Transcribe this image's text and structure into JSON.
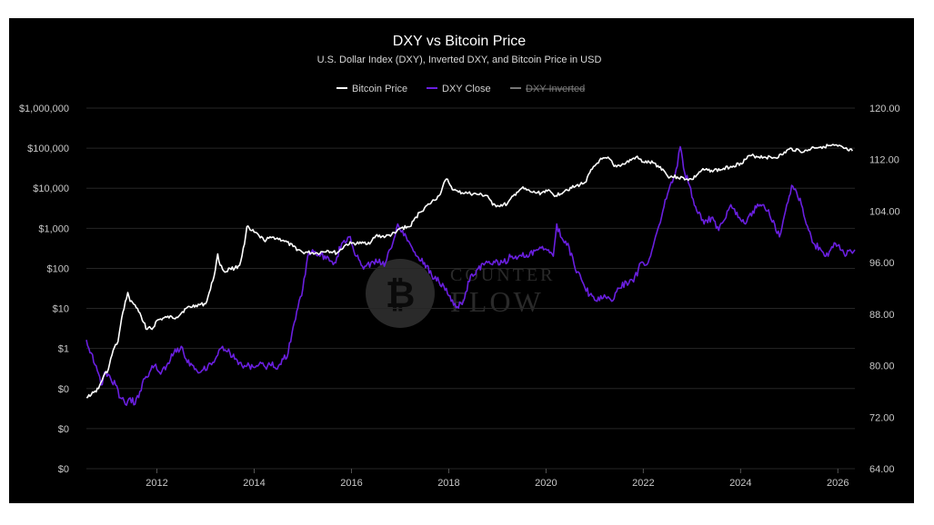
{
  "chart_data": {
    "type": "line",
    "title": "DXY vs Bitcoin Price",
    "subtitle": "U.S. Dollar Index (DXY), Inverted DXY, and Bitcoin Price in USD",
    "watermark": {
      "top": "COUNTER",
      "bottom": "FLOW"
    },
    "legend": [
      {
        "name": "Bitcoin Price",
        "color": "#ffffff",
        "hidden": false
      },
      {
        "name": "DXY Close",
        "color": "#6a1fe0",
        "hidden": false
      },
      {
        "name": "DXY Inverted",
        "color": "#8a8a8a",
        "hidden": true
      }
    ],
    "x_ticks": [
      "2012",
      "2014",
      "2016",
      "2018",
      "2020",
      "2022",
      "2024",
      "2026"
    ],
    "x_range": [
      2010.55,
      2026.35
    ],
    "y_left": {
      "scale": "log",
      "tick_labels": [
        "$1,000,000",
        "$100,000",
        "$10,000",
        "$1,000",
        "$100",
        "$10",
        "$1",
        "$0",
        "$0",
        "$0"
      ],
      "tick_values": [
        1000000,
        100000,
        10000,
        1000,
        100,
        10,
        1,
        0.1,
        0.01,
        0.001
      ]
    },
    "y_right": {
      "scale": "linear",
      "range": [
        64,
        120
      ],
      "tick_labels": [
        "120.00",
        "112.00",
        "104.00",
        "96.00",
        "88.00",
        "80.00",
        "72.00",
        "64.00"
      ],
      "tick_values": [
        120,
        112,
        104,
        96,
        88,
        80,
        72,
        64
      ]
    },
    "series": [
      {
        "name": "Bitcoin Price",
        "axis": "left",
        "color": "#ffffff",
        "x": [
          2010.55,
          2010.6,
          2010.65,
          2010.7,
          2010.8,
          2010.9,
          2011.0,
          2011.1,
          2011.2,
          2011.3,
          2011.4,
          2011.45,
          2011.5,
          2011.6,
          2011.7,
          2011.8,
          2011.85,
          2011.9,
          2012.0,
          2012.2,
          2012.4,
          2012.6,
          2012.8,
          2013.0,
          2013.1,
          2013.2,
          2013.25,
          2013.3,
          2013.4,
          2013.5,
          2013.6,
          2013.7,
          2013.8,
          2013.85,
          2013.92,
          2014.0,
          2014.1,
          2014.2,
          2014.4,
          2014.6,
          2014.8,
          2015.0,
          2015.1,
          2015.3,
          2015.5,
          2015.7,
          2015.9,
          2016.0,
          2016.2,
          2016.4,
          2016.5,
          2016.7,
          2016.9,
          2017.0,
          2017.2,
          2017.4,
          2017.6,
          2017.8,
          2017.95,
          2018.0,
          2018.1,
          2018.2,
          2018.4,
          2018.6,
          2018.8,
          2018.9,
          2019.0,
          2019.2,
          2019.4,
          2019.5,
          2019.7,
          2019.9,
          2020.0,
          2020.2,
          2020.4,
          2020.6,
          2020.8,
          2020.95,
          2021.1,
          2021.3,
          2021.4,
          2021.6,
          2021.85,
          2022.0,
          2022.2,
          2022.4,
          2022.5,
          2022.7,
          2022.9,
          2023.0,
          2023.2,
          2023.4,
          2023.6,
          2023.8,
          2024.0,
          2024.2,
          2024.5,
          2024.7,
          2024.85,
          2025.0,
          2025.2,
          2025.3,
          2025.5,
          2025.7,
          2025.85,
          2026.0,
          2026.2,
          2026.3
        ],
        "values": [
          0.06,
          0.07,
          0.07,
          0.08,
          0.1,
          0.2,
          0.3,
          0.9,
          1.5,
          8,
          25,
          15,
          14,
          10,
          5,
          3,
          3.5,
          3,
          5,
          6,
          6,
          10,
          12,
          13,
          30,
          90,
          230,
          120,
          80,
          100,
          100,
          120,
          400,
          1100,
          900,
          800,
          650,
          500,
          600,
          500,
          350,
          250,
          250,
          240,
          280,
          240,
          400,
          420,
          420,
          450,
          650,
          620,
          750,
          1000,
          1100,
          2500,
          4000,
          6500,
          17000,
          14000,
          9000,
          8000,
          7500,
          7000,
          6500,
          3800,
          3700,
          4000,
          8000,
          10000,
          8000,
          7500,
          9000,
          6500,
          9000,
          11000,
          14000,
          30000,
          50000,
          55000,
          35000,
          40000,
          60000,
          45000,
          43000,
          30000,
          20000,
          19000,
          17000,
          16500,
          28000,
          28000,
          29000,
          35000,
          42000,
          65000,
          60000,
          58000,
          68000,
          95000,
          90000,
          80000,
          105000,
          110000,
          115000,
          112000,
          90000,
          85000
        ]
      },
      {
        "name": "DXY Close",
        "axis": "right",
        "color": "#6a1fe0",
        "x": [
          2010.55,
          2010.65,
          2010.75,
          2010.85,
          2010.95,
          2011.05,
          2011.15,
          2011.25,
          2011.35,
          2011.45,
          2011.55,
          2011.65,
          2011.75,
          2011.85,
          2011.95,
          2012.05,
          2012.2,
          2012.35,
          2012.5,
          2012.6,
          2012.75,
          2012.9,
          2013.05,
          2013.2,
          2013.35,
          2013.5,
          2013.6,
          2013.75,
          2013.9,
          2014.05,
          2014.2,
          2014.35,
          2014.5,
          2014.6,
          2014.7,
          2014.8,
          2014.9,
          2015.0,
          2015.1,
          2015.2,
          2015.35,
          2015.5,
          2015.65,
          2015.8,
          2015.95,
          2016.1,
          2016.25,
          2016.4,
          2016.55,
          2016.7,
          2016.85,
          2016.95,
          2017.05,
          2017.2,
          2017.35,
          2017.5,
          2017.65,
          2017.8,
          2017.95,
          2018.05,
          2018.15,
          2018.3,
          2018.45,
          2018.6,
          2018.8,
          2018.95,
          2019.1,
          2019.3,
          2019.5,
          2019.65,
          2019.8,
          2019.95,
          2020.05,
          2020.15,
          2020.22,
          2020.3,
          2020.45,
          2020.6,
          2020.75,
          2020.9,
          2021.05,
          2021.2,
          2021.35,
          2021.5,
          2021.65,
          2021.8,
          2021.95,
          2022.1,
          2022.25,
          2022.4,
          2022.55,
          2022.7,
          2022.76,
          2022.85,
          2022.95,
          2023.1,
          2023.25,
          2023.4,
          2023.55,
          2023.7,
          2023.8,
          2023.95,
          2024.1,
          2024.25,
          2024.4,
          2024.55,
          2024.7,
          2024.8,
          2024.95,
          2025.05,
          2025.15,
          2025.25,
          2025.35,
          2025.5,
          2025.65,
          2025.8,
          2025.95,
          2026.05,
          2026.15,
          2026.25,
          2026.35
        ],
        "values": [
          84,
          82,
          80,
          77,
          79,
          78,
          77,
          75,
          74,
          75,
          74,
          76,
          78,
          79,
          80,
          79,
          80,
          82,
          83,
          81,
          80,
          79,
          80,
          81,
          83,
          82,
          81,
          80,
          80,
          80,
          80,
          80,
          80,
          81,
          82,
          86,
          89,
          92,
          97,
          98,
          97,
          97,
          96,
          99,
          100,
          97,
          95,
          96,
          96,
          96,
          99,
          102,
          101,
          99,
          97,
          96,
          94,
          93,
          92,
          90,
          89,
          90,
          94,
          95,
          96,
          96,
          96,
          97,
          97,
          97,
          98,
          98,
          98,
          97,
          102,
          100,
          99,
          95,
          93,
          91,
          90,
          91,
          90,
          92,
          93,
          93,
          96,
          96,
          100,
          104,
          108,
          111,
          114,
          110,
          108,
          104,
          102,
          103,
          101,
          103,
          105,
          103,
          102,
          104,
          105,
          104,
          102,
          100,
          105,
          108,
          107,
          105,
          102,
          99,
          98,
          97,
          99,
          98,
          97,
          98,
          98
        ]
      }
    ]
  }
}
